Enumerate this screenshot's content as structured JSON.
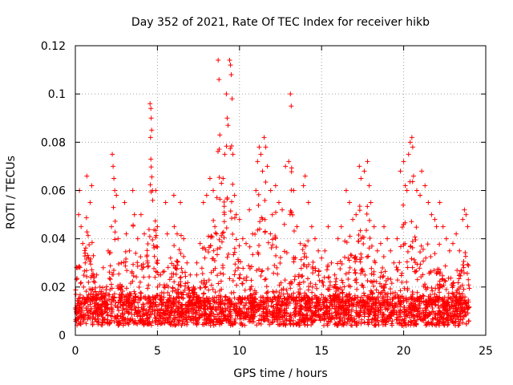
{
  "chart_data": {
    "type": "scatter",
    "title": "Day 352 of 2021, Rate Of TEC Index for receiver hikb",
    "xlabel": "GPS time / hours",
    "ylabel": "ROTI / TECUs",
    "xlim": [
      0,
      25
    ],
    "ylim": [
      0,
      0.12
    ],
    "x_ticks": [
      0,
      5,
      10,
      15,
      20,
      25
    ],
    "x_tick_labels": [
      "0",
      "5",
      "10",
      "15",
      "20",
      "25"
    ],
    "y_ticks": [
      0,
      0.02,
      0.04,
      0.06,
      0.08,
      0.1,
      0.12
    ],
    "y_tick_labels": [
      "0",
      "0.02",
      "0.04",
      "0.06",
      "0.08",
      "0.1",
      "0.12"
    ],
    "grid": true,
    "marker": "+",
    "marker_color": "#ff0000",
    "series": [
      {
        "name": "ROTI",
        "points": [
          [
            0.1,
            0.012
          ],
          [
            0.2,
            0.05
          ],
          [
            0.25,
            0.06
          ],
          [
            0.35,
            0.045
          ],
          [
            0.45,
            0.038
          ],
          [
            0.5,
            0.02
          ],
          [
            0.6,
            0.03
          ],
          [
            0.7,
            0.066
          ],
          [
            0.8,
            0.022
          ],
          [
            0.9,
            0.055
          ],
          [
            1.0,
            0.062
          ],
          [
            1.1,
            0.033
          ],
          [
            1.2,
            0.018
          ],
          [
            1.3,
            0.025
          ],
          [
            1.5,
            0.02
          ],
          [
            1.7,
            0.028
          ],
          [
            1.8,
            0.015
          ],
          [
            2.0,
            0.035
          ],
          [
            2.2,
            0.045
          ],
          [
            2.25,
            0.075
          ],
          [
            2.3,
            0.07
          ],
          [
            2.35,
            0.065
          ],
          [
            2.4,
            0.06
          ],
          [
            2.5,
            0.058
          ],
          [
            2.6,
            0.04
          ],
          [
            2.8,
            0.03
          ],
          [
            3.0,
            0.055
          ],
          [
            3.1,
            0.042
          ],
          [
            3.3,
            0.035
          ],
          [
            3.5,
            0.06
          ],
          [
            3.6,
            0.05
          ],
          [
            3.8,
            0.04
          ],
          [
            4.0,
            0.05
          ],
          [
            4.2,
            0.042
          ],
          [
            4.4,
            0.03
          ],
          [
            4.55,
            0.096
          ],
          [
            4.6,
            0.094
          ],
          [
            4.62,
            0.09
          ],
          [
            4.65,
            0.085
          ],
          [
            4.58,
            0.082
          ],
          [
            4.6,
            0.073
          ],
          [
            4.7,
            0.06
          ],
          [
            4.9,
            0.06
          ],
          [
            5.0,
            0.045
          ],
          [
            5.2,
            0.025
          ],
          [
            5.4,
            0.02
          ],
          [
            5.5,
            0.055
          ],
          [
            5.6,
            0.042
          ],
          [
            5.8,
            0.032
          ],
          [
            6.0,
            0.058
          ],
          [
            6.2,
            0.042
          ],
          [
            6.4,
            0.055
          ],
          [
            6.6,
            0.04
          ],
          [
            6.8,
            0.03
          ],
          [
            7.0,
            0.025
          ],
          [
            7.2,
            0.02
          ],
          [
            7.4,
            0.03
          ],
          [
            7.6,
            0.038
          ],
          [
            7.8,
            0.055
          ],
          [
            8.0,
            0.058
          ],
          [
            8.2,
            0.065
          ],
          [
            8.4,
            0.06
          ],
          [
            8.5,
            0.045
          ],
          [
            8.6,
            0.042
          ],
          [
            8.7,
            0.114
          ],
          [
            8.75,
            0.106
          ],
          [
            8.8,
            0.083
          ],
          [
            8.9,
            0.063
          ],
          [
            9.0,
            0.065
          ],
          [
            9.1,
            0.075
          ],
          [
            9.2,
            0.1
          ],
          [
            9.25,
            0.09
          ],
          [
            9.3,
            0.087
          ],
          [
            9.4,
            0.114
          ],
          [
            9.45,
            0.112
          ],
          [
            9.5,
            0.108
          ],
          [
            9.55,
            0.098
          ],
          [
            9.6,
            0.075
          ],
          [
            9.7,
            0.058
          ],
          [
            9.8,
            0.05
          ],
          [
            10.0,
            0.048
          ],
          [
            10.2,
            0.04
          ],
          [
            10.4,
            0.038
          ],
          [
            10.6,
            0.052
          ],
          [
            10.8,
            0.042
          ],
          [
            11.0,
            0.06
          ],
          [
            11.1,
            0.072
          ],
          [
            11.2,
            0.078
          ],
          [
            11.3,
            0.075
          ],
          [
            11.4,
            0.068
          ],
          [
            11.5,
            0.082
          ],
          [
            11.6,
            0.078
          ],
          [
            11.7,
            0.07
          ],
          [
            11.9,
            0.06
          ],
          [
            12.0,
            0.05
          ],
          [
            12.2,
            0.062
          ],
          [
            12.4,
            0.055
          ],
          [
            12.6,
            0.052
          ],
          [
            12.8,
            0.07
          ],
          [
            13.0,
            0.072
          ],
          [
            13.1,
            0.1
          ],
          [
            13.15,
            0.095
          ],
          [
            13.3,
            0.06
          ],
          [
            13.5,
            0.045
          ],
          [
            13.7,
            0.038
          ],
          [
            13.9,
            0.062
          ],
          [
            14.0,
            0.066
          ],
          [
            14.2,
            0.055
          ],
          [
            14.4,
            0.045
          ],
          [
            14.6,
            0.04
          ],
          [
            14.8,
            0.035
          ],
          [
            15.0,
            0.032
          ],
          [
            15.2,
            0.035
          ],
          [
            15.4,
            0.045
          ],
          [
            15.6,
            0.03
          ],
          [
            15.8,
            0.025
          ],
          [
            16.0,
            0.04
          ],
          [
            16.2,
            0.045
          ],
          [
            16.5,
            0.06
          ],
          [
            16.7,
            0.055
          ],
          [
            16.9,
            0.048
          ],
          [
            17.1,
            0.05
          ],
          [
            17.3,
            0.07
          ],
          [
            17.4,
            0.065
          ],
          [
            17.6,
            0.068
          ],
          [
            17.8,
            0.072
          ],
          [
            17.9,
            0.062
          ],
          [
            18.0,
            0.055
          ],
          [
            18.2,
            0.045
          ],
          [
            18.4,
            0.035
          ],
          [
            18.6,
            0.038
          ],
          [
            18.8,
            0.045
          ],
          [
            19.0,
            0.04
          ],
          [
            19.2,
            0.035
          ],
          [
            19.4,
            0.03
          ],
          [
            19.6,
            0.04
          ],
          [
            19.8,
            0.068
          ],
          [
            20.0,
            0.072
          ],
          [
            20.1,
            0.062
          ],
          [
            20.2,
            0.06
          ],
          [
            20.3,
            0.075
          ],
          [
            20.4,
            0.08
          ],
          [
            20.5,
            0.082
          ],
          [
            20.55,
            0.078
          ],
          [
            20.6,
            0.066
          ],
          [
            20.8,
            0.06
          ],
          [
            21.0,
            0.058
          ],
          [
            21.1,
            0.068
          ],
          [
            21.3,
            0.062
          ],
          [
            21.5,
            0.055
          ],
          [
            21.7,
            0.05
          ],
          [
            21.9,
            0.048
          ],
          [
            22.0,
            0.045
          ],
          [
            22.2,
            0.055
          ],
          [
            22.4,
            0.045
          ],
          [
            22.6,
            0.04
          ],
          [
            22.8,
            0.035
          ],
          [
            23.0,
            0.038
          ],
          [
            23.2,
            0.042
          ],
          [
            23.4,
            0.035
          ],
          [
            23.6,
            0.048
          ],
          [
            23.7,
            0.052
          ],
          [
            23.8,
            0.05
          ],
          [
            23.9,
            0.045
          ]
        ]
      }
    ]
  }
}
